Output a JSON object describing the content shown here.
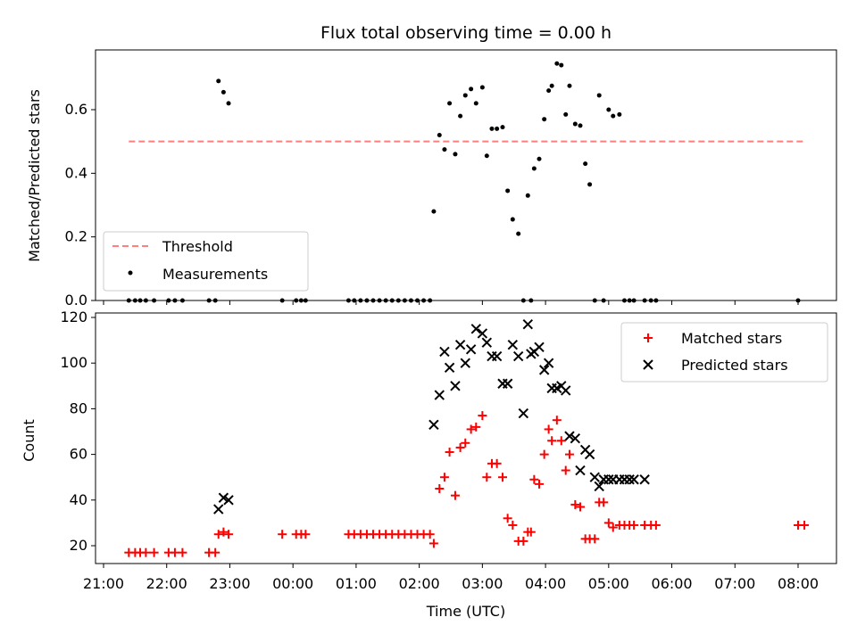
{
  "chart_data": [
    {
      "type": "scatter",
      "title": "Flux total observing time = 0.00 h",
      "xlabel": "",
      "ylabel": "Matched/Predicted stars",
      "xlim": [
        20.9,
        32.6
      ],
      "ylim": [
        0,
        0.79
      ],
      "y_ticks": [
        "0.0",
        "0.2",
        "0.4",
        "0.6"
      ],
      "legend": {
        "placement": "lower-left"
      },
      "threshold": {
        "name": "Threshold",
        "value": 0.5,
        "x_range": [
          21.4,
          32.1
        ],
        "color": "#ff7f7f",
        "style": "dashed"
      },
      "series": [
        {
          "name": "Measurements",
          "color": "#000000",
          "marker": "dot",
          "x": [
            21.4,
            21.5,
            21.58,
            21.67,
            21.8,
            22.03,
            22.13,
            22.25,
            22.67,
            22.77,
            22.82,
            22.9,
            22.98,
            23.83,
            24.05,
            24.13,
            24.2,
            24.88,
            24.97,
            25.07,
            25.17,
            25.27,
            25.37,
            25.47,
            25.57,
            25.67,
            25.77,
            25.87,
            25.97,
            26.07,
            26.17,
            26.23,
            26.32,
            26.4,
            26.48,
            26.57,
            26.65,
            26.73,
            26.82,
            26.9,
            27.0,
            27.07,
            27.15,
            27.23,
            27.32,
            27.4,
            27.48,
            27.57,
            27.65,
            27.72,
            27.77,
            27.82,
            27.9,
            27.98,
            28.05,
            28.1,
            28.18,
            28.25,
            28.32,
            28.38,
            28.47,
            28.55,
            28.63,
            28.7,
            28.78,
            28.85,
            28.92,
            29.0,
            29.07,
            29.17,
            29.25,
            29.33,
            29.4,
            29.57,
            29.67,
            29.75,
            32.0
          ],
          "y": [
            0,
            0,
            0,
            0,
            0,
            0,
            0,
            0,
            0,
            0,
            0.69,
            0.655,
            0.62,
            0,
            0,
            0,
            0,
            0,
            0,
            0,
            0,
            0,
            0,
            0,
            0,
            0,
            0,
            0,
            0,
            0,
            0,
            0.28,
            0.52,
            0.475,
            0.62,
            0.46,
            0.58,
            0.645,
            0.665,
            0.62,
            0.67,
            0.455,
            0.54,
            0.54,
            0.545,
            0.345,
            0.255,
            0.21,
            0,
            0.33,
            0,
            0.415,
            0.445,
            0.57,
            0.66,
            0.675,
            0.745,
            0.74,
            0.585,
            0.675,
            0.555,
            0.55,
            0.43,
            0.365,
            0,
            0.645,
            0,
            0.6,
            0.58,
            0.585,
            0,
            0,
            0,
            0,
            0,
            0,
            0
          ]
        }
      ]
    },
    {
      "type": "scatter",
      "title": "",
      "xlabel": "Time (UTC)",
      "ylabel": "Count",
      "xlim": [
        20.9,
        32.6
      ],
      "ylim": [
        12,
        121
      ],
      "y_ticks": [
        "20",
        "40",
        "60",
        "80",
        "100",
        "120"
      ],
      "x_ticks": [
        "21:00",
        "22:00",
        "23:00",
        "00:00",
        "01:00",
        "02:00",
        "03:00",
        "04:00",
        "05:00",
        "06:00",
        "07:00",
        "08:00"
      ],
      "legend": {
        "placement": "top-right"
      },
      "series": [
        {
          "name": "Matched stars",
          "color": "#ff0000",
          "marker": "plus",
          "x": [
            21.4,
            21.5,
            21.58,
            21.67,
            21.8,
            22.03,
            22.13,
            22.25,
            22.67,
            22.77,
            22.82,
            22.9,
            22.98,
            23.83,
            24.05,
            24.13,
            24.2,
            24.88,
            24.97,
            25.07,
            25.17,
            25.27,
            25.37,
            25.47,
            25.57,
            25.67,
            25.77,
            25.87,
            25.97,
            26.07,
            26.17,
            26.23,
            26.32,
            26.4,
            26.48,
            26.57,
            26.65,
            26.73,
            26.82,
            26.9,
            27.0,
            27.07,
            27.15,
            27.23,
            27.32,
            27.4,
            27.48,
            27.57,
            27.65,
            27.72,
            27.77,
            27.82,
            27.9,
            27.98,
            28.05,
            28.1,
            28.18,
            28.25,
            28.32,
            28.38,
            28.47,
            28.55,
            28.63,
            28.7,
            28.78,
            28.85,
            28.92,
            29.0,
            29.07,
            29.17,
            29.25,
            29.33,
            29.4,
            29.57,
            29.67,
            29.75,
            32.0,
            32.1
          ],
          "y": [
            17,
            17,
            17,
            17,
            17,
            17,
            17,
            17,
            17,
            17,
            25,
            26,
            25,
            25,
            25,
            25,
            25,
            25,
            25,
            25,
            25,
            25,
            25,
            25,
            25,
            25,
            25,
            25,
            25,
            25,
            25,
            21,
            45,
            50,
            61,
            42,
            63,
            65,
            71,
            72,
            77,
            50,
            56,
            56,
            50,
            32,
            29,
            22,
            22,
            26,
            26,
            49,
            47,
            60,
            71,
            66,
            75,
            66,
            53,
            60,
            38,
            37,
            23,
            23,
            23,
            39,
            39,
            30,
            28,
            29,
            29,
            29,
            29,
            29,
            29,
            29,
            29,
            29
          ]
        },
        {
          "name": "Predicted stars",
          "color": "#000000",
          "marker": "x",
          "x": [
            22.82,
            22.9,
            22.98,
            26.23,
            26.32,
            26.4,
            26.48,
            26.57,
            26.65,
            26.73,
            26.82,
            26.9,
            27.0,
            27.07,
            27.15,
            27.23,
            27.32,
            27.4,
            27.48,
            27.57,
            27.65,
            27.72,
            27.77,
            27.82,
            27.9,
            27.98,
            28.05,
            28.1,
            28.18,
            28.25,
            28.32,
            28.38,
            28.47,
            28.55,
            28.63,
            28.7,
            28.78,
            28.85,
            28.92,
            29.0,
            29.07,
            29.17,
            29.25,
            29.33,
            29.4,
            29.57
          ],
          "y": [
            36,
            41,
            40,
            73,
            86,
            105,
            98,
            90,
            108,
            100,
            106,
            115,
            113,
            109,
            103,
            103,
            91,
            91,
            108,
            103,
            78,
            117,
            104,
            105,
            107,
            97,
            100,
            89,
            89,
            90,
            88,
            68,
            67,
            53,
            62,
            60,
            50,
            46,
            49,
            49,
            49,
            49,
            49,
            49,
            49,
            49
          ]
        }
      ]
    }
  ]
}
